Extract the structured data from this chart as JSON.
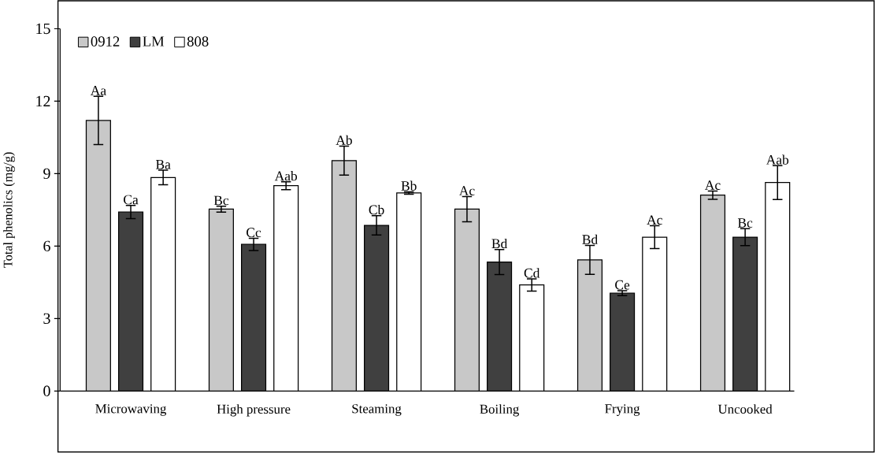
{
  "chart_data": {
    "type": "bar",
    "ylabel": "Total phenolics (mg/g)",
    "categories": [
      "Microwaving",
      "High pressure",
      "Steaming",
      "Boiling",
      "Frying",
      "Uncooked"
    ],
    "series": [
      {
        "name": "0912",
        "color": "#c8c8c8",
        "values": [
          11.2,
          7.53,
          9.54,
          7.53,
          5.43,
          8.11
        ],
        "errors": [
          1.0,
          0.12,
          0.6,
          0.52,
          0.6,
          0.17
        ],
        "value_labels": [
          "Aa",
          "Bc",
          "Ab",
          "Ac",
          "Bd",
          "Ac"
        ]
      },
      {
        "name": "LM",
        "color": "#404040",
        "values": [
          7.41,
          6.07,
          6.86,
          5.34,
          4.05,
          6.37
        ],
        "errors": [
          0.27,
          0.25,
          0.4,
          0.52,
          0.1,
          0.35
        ],
        "value_labels": [
          "Ca",
          "Cc",
          "Cb",
          "Bd",
          "Ce",
          "Bc"
        ]
      },
      {
        "name": "808",
        "color": "#ffffff",
        "values": [
          8.84,
          8.5,
          8.2,
          4.39,
          6.37,
          8.63
        ],
        "errors": [
          0.3,
          0.16,
          0.05,
          0.25,
          0.47,
          0.7
        ],
        "value_labels": [
          "Ba",
          "Aab",
          "Bb",
          "Cd",
          "Ac",
          "Aab"
        ]
      }
    ],
    "ylim": [
      0,
      15
    ],
    "yticks": [
      0,
      3,
      6,
      9,
      12,
      15
    ],
    "grid": false,
    "legend": "top left"
  }
}
